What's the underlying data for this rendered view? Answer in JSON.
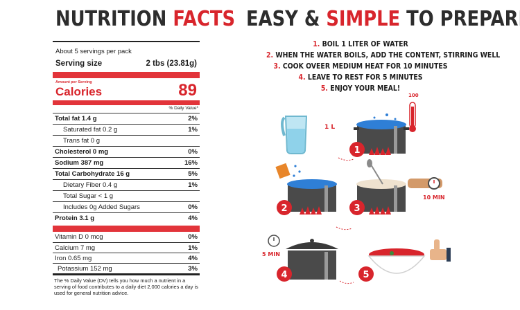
{
  "nutrition": {
    "title_dark": "NUTRITION",
    "title_red": "FACTS",
    "servings_per_pack": "About 5 servings per pack",
    "serving_size_label": "Serving size",
    "serving_size_value": "2 tbs (23.81g)",
    "amount_per_serving": "Amount per Serving",
    "calories_label": "Calories",
    "calories_value": "89",
    "dv_header": "% Daily Value*",
    "rows": [
      {
        "label": "Total fat 1.4 g",
        "value": "2%"
      },
      {
        "label": "Saturated fat 0.2 g",
        "value": "1%"
      },
      {
        "label": "Trans fat 0 g",
        "value": ""
      },
      {
        "label": "Cholesterol 0 mg",
        "value": "0%"
      },
      {
        "label": "Sodium 387 mg",
        "value": "16%"
      },
      {
        "label": "Total Carbohydrate 16 g",
        "value": "5%"
      },
      {
        "label": "Dietary Fiber 0.4 g",
        "value": "1%"
      },
      {
        "label": "Total Sugar < 1 g",
        "value": ""
      },
      {
        "label": "Includes 0g Added Sugars",
        "value": "0%"
      },
      {
        "label": "Protein 3.1 g",
        "value": "4%"
      }
    ],
    "vitamins": [
      {
        "label": "Vitamin D 0 mcg",
        "value": "0%"
      },
      {
        "label": "Calcium 7 mg",
        "value": "1%"
      },
      {
        "label": "Iron 0.65 mg",
        "value": "4%"
      },
      {
        "label": "Potassium 152 mg",
        "value": "3%"
      }
    ],
    "footnote": "The % Daily Value (DV) tells you how much a nutrient in a serving of food contributes to a daily diet 2,000 calories a day is used for general nutrition advice."
  },
  "prepare": {
    "title_dark_1": "EASY &",
    "title_red": "SIMPLE",
    "title_dark_2": "TO PREPARE",
    "steps": [
      {
        "num": "1.",
        "text": "BOIL 1 LITER OF WATER"
      },
      {
        "num": "2.",
        "text": "WHEN THE WATER BOILS, ADD THE CONTENT, STIRRING WELL"
      },
      {
        "num": "3.",
        "text": "COOK OVEER MEDIUM HEAT FOR 10 MINUTES"
      },
      {
        "num": "4.",
        "text": "LEAVE TO REST FOR 5 MINUTES"
      },
      {
        "num": "5.",
        "text": "ENJOY YOUR MEAL!"
      }
    ],
    "illustration": {
      "thermometer_label": "100",
      "jug_label": "1 L",
      "timer_10": "10 MIN",
      "timer_5": "5 MIN",
      "step_badges": [
        "1",
        "2",
        "3",
        "4",
        "5"
      ]
    },
    "colors": {
      "accent_red": "#d8252c",
      "water_blue": "#2f7fd6",
      "pot_gray": "#4a4a4a"
    }
  }
}
